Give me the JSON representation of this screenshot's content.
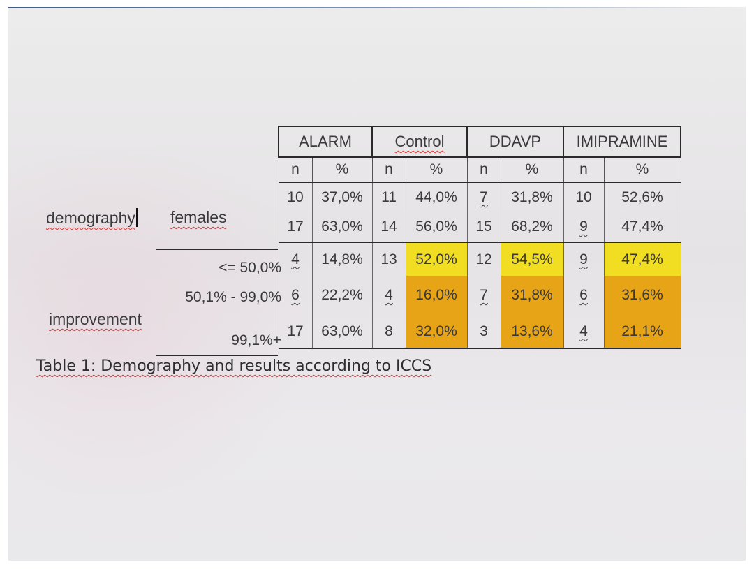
{
  "row_groups": {
    "demography": "demography",
    "females": "females",
    "improvement": "improvement",
    "improvement_levels": [
      "<= 50,0%",
      "50,1% - 99,0%",
      "99,1%+"
    ]
  },
  "table": {
    "groups": [
      "ALARM",
      "Control",
      "DDAVP",
      "IMIPRAMINE"
    ],
    "subheaders": [
      "n",
      "%",
      "n",
      "%",
      "n",
      "%",
      "n",
      "%"
    ],
    "rows": [
      [
        "10",
        "37,0%",
        "11",
        "44,0%",
        "7",
        "31,8%",
        "10",
        "52,6%"
      ],
      [
        "17",
        "63,0%",
        "14",
        "56,0%",
        "15",
        "68,2%",
        "9",
        "47,4%"
      ],
      [
        "4",
        "14,8%",
        "13",
        "52,0%",
        "12",
        "54,5%",
        "9",
        "47,4%"
      ],
      [
        "6",
        "22,2%",
        "4",
        "16,0%",
        "7",
        "31,8%",
        "6",
        "31,6%"
      ],
      [
        "17",
        "63,0%",
        "8",
        "32,0%",
        "3",
        "13,6%",
        "4",
        "21,1%"
      ]
    ]
  },
  "caption": "Table 1: Demography and results according to ICCS",
  "colors": {
    "highlight_yellow": "#f1dd22",
    "highlight_orange": "#e8a417"
  }
}
